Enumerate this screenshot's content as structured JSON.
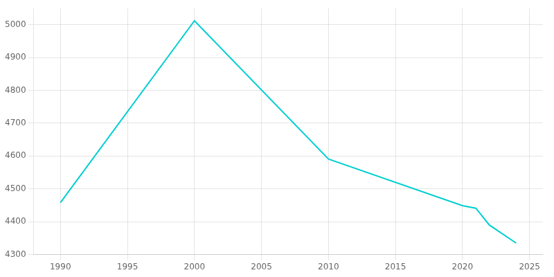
{
  "chart_data": {
    "type": "line",
    "x": [
      1990,
      2000,
      2010,
      2020,
      2021,
      2022,
      2024
    ],
    "values": [
      4458,
      5012,
      4591,
      4449,
      4441,
      4390,
      4335
    ],
    "color": "#00CED1",
    "xlim": [
      1988,
      2026
    ],
    "ylim": [
      4300,
      5050
    ],
    "xticks": [
      1990,
      1995,
      2000,
      2005,
      2010,
      2015,
      2020,
      2025
    ],
    "yticks": [
      4300,
      4400,
      4500,
      4600,
      4700,
      4800,
      4900,
      5000
    ],
    "grid": true
  }
}
